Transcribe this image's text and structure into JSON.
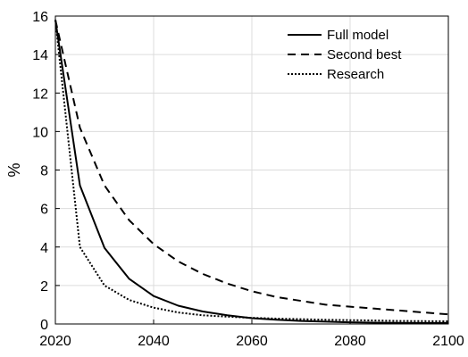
{
  "chart_data": {
    "type": "line",
    "title": "",
    "xlabel": "",
    "ylabel": "%",
    "xlim": [
      2020,
      2100
    ],
    "ylim": [
      0,
      16
    ],
    "xticks": [
      "2020",
      "2040",
      "2060",
      "2080",
      "2100"
    ],
    "yticks": [
      "0",
      "2",
      "4",
      "6",
      "8",
      "10",
      "12",
      "14",
      "16"
    ],
    "grid": true,
    "legend_position": "top-right",
    "series": [
      {
        "name": "Full model",
        "style": "solid",
        "color": "#000000",
        "x": [
          2020,
          2025,
          2030,
          2035,
          2040,
          2045,
          2050,
          2055,
          2060,
          2065,
          2070,
          2075,
          2080,
          2085,
          2090,
          2095,
          2100
        ],
        "y": [
          15.8,
          7.2,
          3.95,
          2.35,
          1.45,
          0.95,
          0.65,
          0.45,
          0.3,
          0.22,
          0.16,
          0.12,
          0.09,
          0.07,
          0.06,
          0.05,
          0.05
        ]
      },
      {
        "name": "Second best",
        "style": "dashed",
        "color": "#000000",
        "x": [
          2020,
          2025,
          2030,
          2035,
          2040,
          2045,
          2050,
          2055,
          2060,
          2065,
          2070,
          2075,
          2080,
          2085,
          2090,
          2095,
          2100
        ],
        "y": [
          15.8,
          10.2,
          7.2,
          5.4,
          4.15,
          3.25,
          2.6,
          2.1,
          1.7,
          1.4,
          1.2,
          1.0,
          0.9,
          0.8,
          0.7,
          0.6,
          0.5
        ]
      },
      {
        "name": "Research",
        "style": "dotted",
        "color": "#000000",
        "x": [
          2020,
          2025,
          2030,
          2035,
          2040,
          2045,
          2050,
          2055,
          2060,
          2065,
          2070,
          2075,
          2080,
          2085,
          2090,
          2095,
          2100
        ],
        "y": [
          15.8,
          4.0,
          2.0,
          1.25,
          0.85,
          0.6,
          0.45,
          0.38,
          0.32,
          0.28,
          0.25,
          0.22,
          0.2,
          0.18,
          0.16,
          0.15,
          0.14
        ]
      }
    ]
  }
}
